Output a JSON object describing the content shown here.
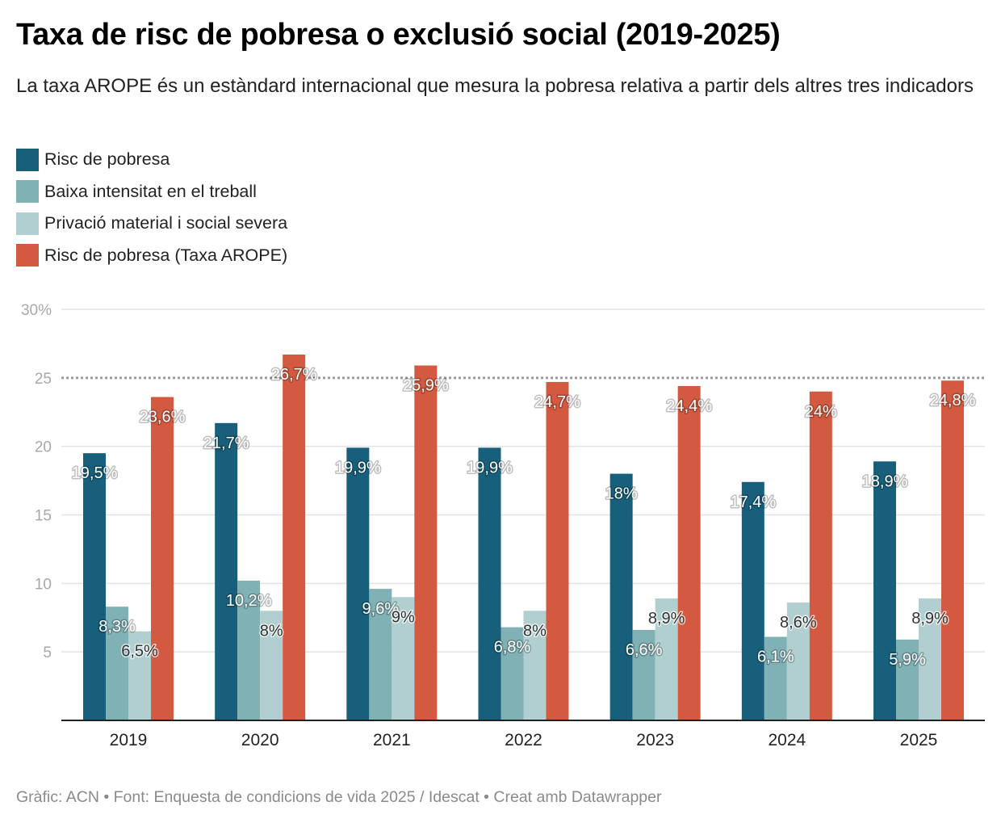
{
  "header": {
    "title": "Taxa de risc de pobresa o exclusió social (2019-2025)",
    "subtitle": "La taxa AROPE és un estàndard internacional que mesura la pobresa relativa a partir dels altres tres indicadors"
  },
  "legend": [
    {
      "label": "Risc de pobresa",
      "color": "#175f7a"
    },
    {
      "label": "Baixa intensitat en el treball",
      "color": "#80b1b4"
    },
    {
      "label": "Privació material i social severa",
      "color": "#b1cfd0"
    },
    {
      "label": "Risc de pobresa (Taxa AROPE)",
      "color": "#d35a40"
    }
  ],
  "footer": "Gràfic: ACN • Font: Enquesta de condicions de vida 2025 / Idescat • Creat amb Datawrapper",
  "chart_data": {
    "type": "bar",
    "title": "Taxa de risc de pobresa o exclusió social (2019-2025)",
    "xlabel": "",
    "ylabel": "",
    "ylim": [
      0,
      30
    ],
    "yticks": [
      5,
      10,
      15,
      20,
      25,
      30
    ],
    "ytick_labels": [
      "5",
      "10",
      "15",
      "20",
      "25",
      "30%"
    ],
    "reference_line": {
      "value": 25,
      "style": "dotted"
    },
    "grid": true,
    "legend_position": "top-left",
    "categories": [
      "2019",
      "2020",
      "2021",
      "2022",
      "2023",
      "2024",
      "2025"
    ],
    "series": [
      {
        "name": "Risc de pobresa",
        "color": "#175f7a",
        "label_style": "light",
        "values": [
          19.5,
          21.7,
          19.9,
          19.9,
          18,
          17.4,
          18.9
        ],
        "labels": [
          "19,5%",
          "21,7%",
          "19,9%",
          "19,9%",
          "18%",
          "17,4%",
          "18,9%"
        ]
      },
      {
        "name": "Baixa intensitat en el treball",
        "color": "#80b1b4",
        "label_style": "light",
        "values": [
          8.3,
          10.2,
          9.6,
          6.8,
          6.6,
          6.1,
          5.9
        ],
        "labels": [
          "8,3%",
          "10,2%",
          "9,6%",
          "6,8%",
          "6,6%",
          "6,1%",
          "5,9%"
        ]
      },
      {
        "name": "Privació material i social severa",
        "color": "#b1cfd0",
        "label_style": "dark",
        "values": [
          6.5,
          8,
          9,
          8,
          8.9,
          8.6,
          8.9
        ],
        "labels": [
          "6,5%",
          "8%",
          "9%",
          "8%",
          "8,9%",
          "8,6%",
          "8,9%"
        ]
      },
      {
        "name": "Risc de pobresa (Taxa AROPE)",
        "color": "#d35a40",
        "label_style": "light",
        "values": [
          23.6,
          26.7,
          25.9,
          24.7,
          24.4,
          24,
          24.8
        ],
        "labels": [
          "23,6%",
          "26,7%",
          "25,9%",
          "24,7%",
          "24,4%",
          "24%",
          "24,8%"
        ]
      }
    ]
  }
}
